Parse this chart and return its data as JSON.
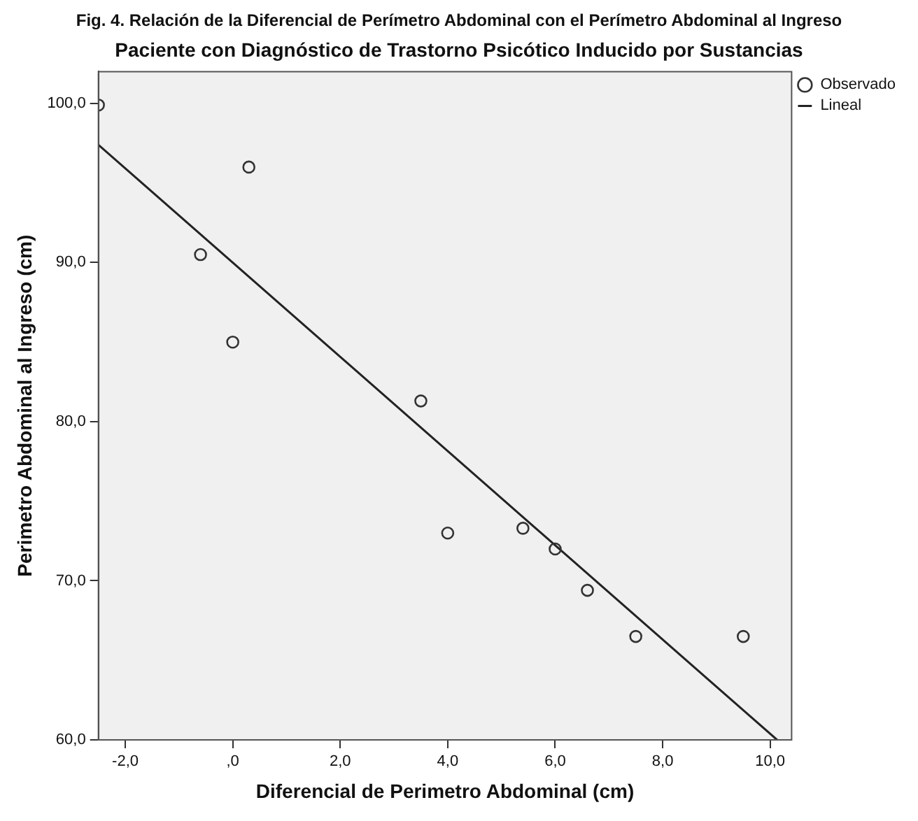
{
  "chart_data": {
    "type": "scatter",
    "title": "Fig. 4. Relación de la Diferencial de Perímetro Abdominal con el Perímetro Abdominal al Ingreso",
    "subtitle": "Paciente con Diagnóstico de Trastorno Psicótico Inducido por Sustancias",
    "xlabel": "Diferencial de Perimetro Abdominal (cm)",
    "ylabel": "Perimetro Abdominal al Ingreso (cm)",
    "series": [
      {
        "name": "Observado",
        "color": "#333333",
        "marker": "circle",
        "x": [
          -2.5,
          0.3,
          -0.6,
          0.0,
          3.5,
          4.0,
          5.4,
          6.0,
          6.6,
          7.5,
          9.5
        ],
        "values": [
          99.9,
          96.0,
          90.5,
          85.0,
          81.3,
          73.0,
          73.3,
          72.0,
          69.4,
          66.5,
          66.5
        ]
      },
      {
        "name": "Lineal",
        "type": "line",
        "color": "#222222",
        "marker": "none",
        "x": [
          -2.5,
          10.13
        ],
        "values": [
          97.4,
          60.0
        ]
      }
    ],
    "xlim": [
      -2.5,
      10.4
    ],
    "xticks": [
      {
        "value": -2,
        "label": "-2,0"
      },
      {
        "value": 0,
        "label": ",0"
      },
      {
        "value": 2,
        "label": "2,0"
      },
      {
        "value": 4,
        "label": "4,0"
      },
      {
        "value": 6,
        "label": "6,0"
      },
      {
        "value": 8,
        "label": "8,0"
      },
      {
        "value": 10,
        "label": "10,0"
      }
    ],
    "ylim": [
      60,
      102
    ],
    "yticks": [
      {
        "value": 60,
        "label": "60,0"
      },
      {
        "value": 70,
        "label": "70,0"
      },
      {
        "value": 80,
        "label": "80,0"
      },
      {
        "value": 90,
        "label": "90,0"
      },
      {
        "value": 100,
        "label": "100,0"
      }
    ],
    "grid": false,
    "legend": "top right"
  }
}
